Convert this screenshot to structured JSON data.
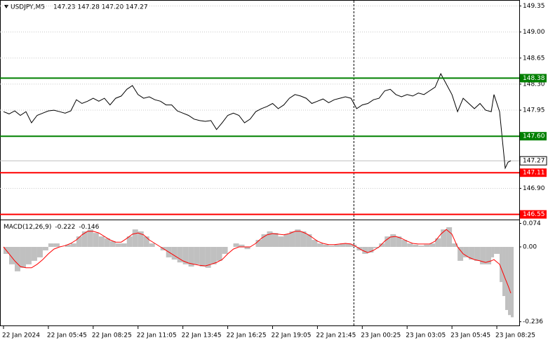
{
  "chart_data": [
    {
      "type": "line",
      "title": "USDJPY,M5",
      "quote": "147.23 147.28 147.20 147.27",
      "color": "#000000",
      "x": [
        0,
        4,
        8,
        12,
        16,
        20,
        24,
        28,
        32,
        36,
        40,
        44,
        48,
        52,
        56,
        60,
        64,
        68,
        72,
        76,
        80,
        84,
        88,
        92,
        96,
        100,
        104,
        108,
        112,
        116,
        120,
        124,
        128,
        132,
        136,
        140,
        144,
        148,
        152,
        156,
        160,
        164,
        168,
        172,
        176,
        180,
        184,
        188,
        192,
        196,
        200,
        204,
        208,
        212,
        216,
        220,
        224,
        228,
        232,
        236,
        240,
        244,
        248,
        252,
        256,
        260,
        264,
        268,
        272,
        276,
        280,
        284,
        288,
        292,
        296,
        300,
        304,
        308,
        312,
        316,
        320,
        324,
        328,
        332,
        336,
        340,
        344,
        348,
        350,
        354,
        356,
        358,
        360,
        362
      ],
      "values": [
        147.93,
        147.9,
        147.94,
        147.88,
        147.93,
        147.78,
        147.88,
        147.91,
        147.94,
        147.95,
        147.93,
        147.91,
        147.94,
        148.09,
        148.04,
        148.07,
        148.11,
        148.07,
        148.11,
        148.02,
        148.11,
        148.14,
        148.23,
        148.28,
        148.16,
        148.11,
        148.13,
        148.09,
        148.07,
        148.02,
        148.02,
        147.94,
        147.91,
        147.88,
        147.83,
        147.81,
        147.8,
        147.81,
        147.69,
        147.78,
        147.88,
        147.91,
        147.88,
        147.78,
        147.83,
        147.93,
        147.97,
        148.0,
        148.04,
        147.97,
        148.02,
        148.11,
        148.16,
        148.14,
        148.11,
        148.04,
        148.07,
        148.1,
        148.05,
        148.09,
        148.11,
        148.13,
        148.11,
        147.97,
        148.02,
        148.04,
        148.09,
        148.11,
        148.21,
        148.23,
        148.16,
        148.13,
        148.16,
        148.14,
        148.18,
        148.16,
        148.21,
        148.26,
        148.44,
        148.3,
        148.16,
        147.93,
        148.11,
        148.04,
        147.97,
        148.04,
        147.95,
        147.93,
        148.16,
        147.93,
        147.55,
        147.17,
        147.25,
        147.27
      ],
      "xlim": [
        -1,
        368
      ],
      "ylim": [
        146.49,
        149.43
      ],
      "yticks": [
        149.35,
        {
          "value": 149.0,
          "label": "149.00"
        },
        148.65,
        {
          "value": 148.3,
          "label": "148.30"
        },
        147.95,
        {
          "value": 146.9,
          "label": "146.90"
        }
      ],
      "grid": true,
      "vlines": [
        250
      ],
      "levels": [
        {
          "value": 148.38,
          "color": "#008000"
        },
        {
          "value": 147.6,
          "label": "147.60",
          "color": "#008000"
        },
        {
          "value": 147.11,
          "color": "#ff0000"
        },
        {
          "value": 146.55,
          "color": "#ff0000"
        }
      ]
    },
    {
      "type": "bar",
      "title": "MACD(12,26,9)",
      "x": [
        0,
        4,
        8,
        12,
        16,
        20,
        24,
        28,
        32,
        36,
        40,
        44,
        48,
        52,
        56,
        60,
        64,
        68,
        72,
        76,
        80,
        84,
        88,
        92,
        96,
        100,
        104,
        108,
        112,
        116,
        120,
        124,
        128,
        132,
        136,
        140,
        144,
        148,
        152,
        156,
        160,
        164,
        168,
        172,
        176,
        180,
        184,
        188,
        192,
        196,
        200,
        204,
        208,
        212,
        216,
        220,
        224,
        228,
        232,
        236,
        240,
        244,
        248,
        252,
        256,
        260,
        264,
        268,
        272,
        276,
        280,
        284,
        288,
        292,
        296,
        300,
        304,
        308,
        312,
        316,
        320,
        324,
        328,
        332,
        336,
        340,
        344,
        348,
        350,
        354,
        356,
        358,
        360,
        362
      ],
      "series": [
        {
          "type": "bar",
          "color": "#c0c0c0",
          "values": [
            -0.022,
            -0.055,
            -0.077,
            -0.066,
            -0.055,
            -0.044,
            -0.033,
            -0.011,
            0.011,
            0.011,
            0,
            0.007,
            0.011,
            0.033,
            0.049,
            0.055,
            0.044,
            0.033,
            0.027,
            0.018,
            0.011,
            0.011,
            0.033,
            0.055,
            0.049,
            0.033,
            0.011,
            0,
            -0.011,
            -0.033,
            -0.04,
            -0.049,
            -0.055,
            -0.062,
            -0.055,
            -0.062,
            -0.066,
            -0.055,
            -0.044,
            -0.022,
            0,
            0.011,
            0.007,
            -0.007,
            0,
            0.022,
            0.04,
            0.049,
            0.044,
            0.033,
            0.04,
            0.049,
            0.055,
            0.049,
            0.04,
            0.022,
            0.011,
            0.007,
            0.004,
            0.007,
            0.011,
            0.011,
            0.007,
            -0.011,
            -0.022,
            -0.018,
            -0.004,
            0.011,
            0.033,
            0.04,
            0.033,
            0.022,
            0.011,
            0.007,
            0.004,
            0.007,
            0.011,
            0.027,
            0.055,
            0.062,
            0.011,
            -0.044,
            -0.033,
            -0.04,
            -0.044,
            -0.055,
            -0.055,
            -0.033,
            -0.022,
            -0.111,
            -0.155,
            -0.199,
            -0.215,
            -0.222
          ]
        },
        {
          "type": "line",
          "color": "#ff0000",
          "values": [
            0,
            -0.022,
            -0.044,
            -0.062,
            -0.066,
            -0.066,
            -0.055,
            -0.04,
            -0.022,
            -0.007,
            0,
            0.004,
            0.011,
            0.022,
            0.038,
            0.049,
            0.049,
            0.044,
            0.033,
            0.022,
            0.015,
            0.015,
            0.027,
            0.04,
            0.044,
            0.038,
            0.022,
            0.011,
            0,
            -0.011,
            -0.022,
            -0.033,
            -0.044,
            -0.051,
            -0.055,
            -0.058,
            -0.06,
            -0.055,
            -0.049,
            -0.04,
            -0.022,
            -0.007,
            0,
            0,
            0,
            0.011,
            0.027,
            0.038,
            0.042,
            0.04,
            0.038,
            0.042,
            0.049,
            0.049,
            0.042,
            0.031,
            0.018,
            0.011,
            0.007,
            0.007,
            0.009,
            0.011,
            0.009,
            0,
            -0.011,
            -0.018,
            -0.011,
            0,
            0.018,
            0.031,
            0.033,
            0.027,
            0.018,
            0.011,
            0.009,
            0.009,
            0.009,
            0.018,
            0.04,
            0.055,
            0.04,
            0,
            -0.022,
            -0.033,
            -0.04,
            -0.044,
            -0.049,
            -0.044,
            -0.04,
            -0.055,
            -0.077,
            -0.1,
            -0.122,
            -0.146
          ]
        }
      ],
      "xlim": [
        -1,
        368
      ],
      "ylim": [
        -0.25,
        0.084
      ],
      "yticks": [
        0.074,
        {
          "value": 0,
          "label": "0.00"
        },
        -0.236
      ],
      "xticks": [
        {
          "value": 0,
          "label": "22 Jan 2024"
        },
        {
          "value": 32,
          "label": "22 Jan 05:45"
        },
        {
          "value": 64,
          "label": "22 Jan 08:25"
        },
        {
          "value": 96,
          "label": "22 Jan 11:05"
        },
        {
          "value": 128,
          "label": "22 Jan 13:45"
        },
        {
          "value": 160,
          "label": "22 Jan 16:25"
        },
        {
          "value": 192,
          "label": "22 Jan 19:05"
        },
        {
          "value": 224,
          "label": "22 Jan 21:45"
        },
        {
          "value": 256,
          "label": "23 Jan 00:25"
        },
        {
          "value": 288,
          "label": "23 Jan 03:05"
        },
        {
          "value": 320,
          "label": "23 Jan 05:45"
        },
        {
          "value": 352,
          "label": "23 Jan 08:25"
        }
      ]
    }
  ]
}
